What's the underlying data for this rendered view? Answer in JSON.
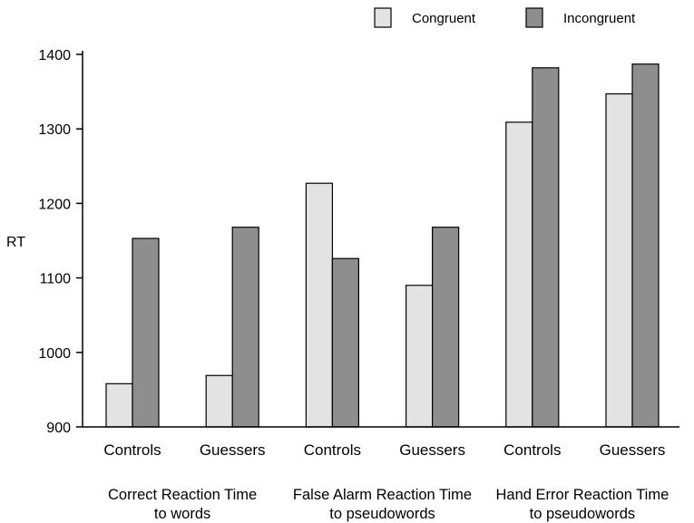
{
  "chart_data": {
    "type": "bar",
    "ylabel": "RT",
    "ylim": [
      900,
      1400
    ],
    "yticks": [
      900,
      1000,
      1100,
      1200,
      1300,
      1400
    ],
    "grid": false,
    "legend_position": "top-right",
    "categories": [
      "Controls",
      "Guessers",
      "Controls",
      "Guessers",
      "Controls",
      "Guessers"
    ],
    "groups": [
      {
        "lines": [
          "Correct Reaction Time",
          "to words"
        ],
        "categories": [
          0,
          1
        ]
      },
      {
        "lines": [
          "False Alarm Reaction Time",
          "to pseudowords"
        ],
        "categories": [
          2,
          3
        ]
      },
      {
        "lines": [
          "Hand Error Reaction Time",
          "to pseudowords"
        ],
        "categories": [
          4,
          5
        ]
      }
    ],
    "series": [
      {
        "name": "Congruent",
        "color": "#e3e3e3",
        "values": [
          958,
          969,
          1227,
          1090,
          1309,
          1347
        ]
      },
      {
        "name": "Incongruent",
        "color": "#8e8e8e",
        "values": [
          1153,
          1168,
          1126,
          1168,
          1382,
          1387
        ]
      }
    ]
  }
}
